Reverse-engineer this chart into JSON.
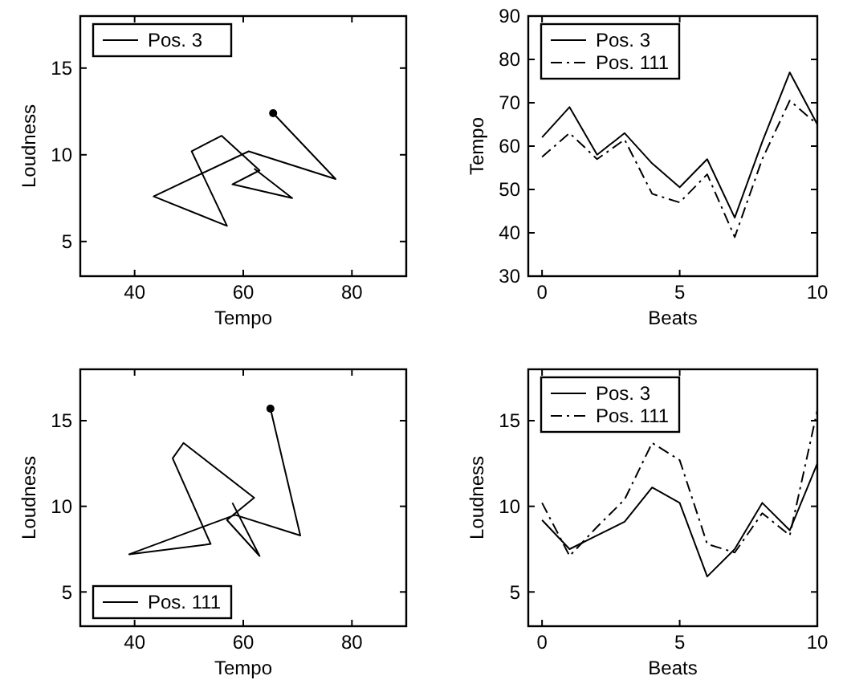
{
  "chart_data": [
    {
      "type": "line",
      "xlabel": "Tempo",
      "ylabel": "Loudness",
      "xlim": [
        30,
        90
      ],
      "ylim": [
        3,
        18
      ],
      "xticks": [
        40,
        60,
        80
      ],
      "yticks": [
        5,
        10,
        15
      ],
      "legend": "top left",
      "series": [
        {
          "name": "Pos. 3",
          "color": "#000000",
          "line_style": "solid",
          "x": [
            62,
            69,
            58,
            63,
            56,
            50.5,
            57,
            43.5,
            61,
            77,
            65.5
          ],
          "values": [
            9.2,
            7.5,
            8.3,
            9.1,
            11.1,
            10.2,
            5.9,
            7.6,
            10.2,
            8.6,
            12.4
          ]
        },
        {
          "type": "scatter",
          "color": "#000000",
          "marker": "circle",
          "x": [
            65.5
          ],
          "values": [
            12.4
          ]
        }
      ]
    },
    {
      "type": "line",
      "xlabel": "Beats",
      "ylabel": "Tempo",
      "xlim": [
        -0.5,
        10
      ],
      "ylim": [
        30,
        90
      ],
      "xticks": [
        0,
        5,
        10
      ],
      "yticks": [
        30,
        40,
        50,
        60,
        70,
        80,
        90
      ],
      "legend": "top left",
      "series": [
        {
          "name": "Pos. 3",
          "color": "#000000",
          "line_style": "solid",
          "x": [
            0,
            1,
            2,
            3,
            4,
            5,
            6,
            7,
            8,
            9,
            10
          ],
          "values": [
            62,
            69,
            58,
            63,
            56,
            50.5,
            57,
            43.5,
            61,
            77,
            65
          ]
        },
        {
          "name": "Pos. 111",
          "color": "#000000",
          "line_style": "dashed",
          "x": [
            0,
            1,
            2,
            3,
            4,
            5,
            6,
            7,
            8,
            9,
            10
          ],
          "values": [
            57.5,
            63,
            57,
            61.5,
            49,
            47,
            53.5,
            39,
            57,
            70.5,
            65
          ]
        }
      ]
    },
    {
      "type": "line",
      "xlabel": "Tempo",
      "ylabel": "Loudness",
      "xlim": [
        30,
        90
      ],
      "ylim": [
        3,
        18
      ],
      "xticks": [
        40,
        60,
        80
      ],
      "yticks": [
        5,
        10,
        15
      ],
      "legend": "bottom left",
      "series": [
        {
          "name": "Pos. 111",
          "color": "#000000",
          "line_style": "solid",
          "x": [
            58,
            63,
            57,
            62,
            49,
            47,
            54,
            39,
            58.5,
            70.5,
            65
          ],
          "values": [
            10.2,
            7.1,
            9.2,
            10.5,
            13.7,
            12.8,
            7.8,
            7.2,
            9.5,
            8.3,
            15.7
          ]
        },
        {
          "type": "scatter",
          "color": "#000000",
          "marker": "circle",
          "x": [
            65
          ],
          "values": [
            15.7
          ]
        }
      ]
    },
    {
      "type": "line",
      "xlabel": "Beats",
      "ylabel": "Loudness",
      "xlim": [
        -0.5,
        10
      ],
      "ylim": [
        3,
        18
      ],
      "xticks": [
        0,
        5,
        10
      ],
      "yticks": [
        5,
        10,
        15
      ],
      "legend": "top left",
      "series": [
        {
          "name": "Pos. 3",
          "color": "#000000",
          "line_style": "solid",
          "x": [
            0,
            1,
            2,
            3,
            4,
            5,
            6,
            7,
            8,
            9,
            10
          ],
          "values": [
            9.2,
            7.5,
            8.3,
            9.1,
            11.1,
            10.2,
            5.9,
            7.5,
            10.2,
            8.6,
            12.5
          ]
        },
        {
          "name": "Pos. 111",
          "color": "#000000",
          "line_style": "dashed",
          "x": [
            0,
            1,
            2,
            3,
            4,
            5,
            6,
            7,
            8,
            9,
            10
          ],
          "values": [
            10.2,
            7.1,
            8.8,
            10.4,
            13.7,
            12.7,
            7.8,
            7.3,
            9.6,
            8.3,
            15.6
          ]
        }
      ]
    }
  ]
}
